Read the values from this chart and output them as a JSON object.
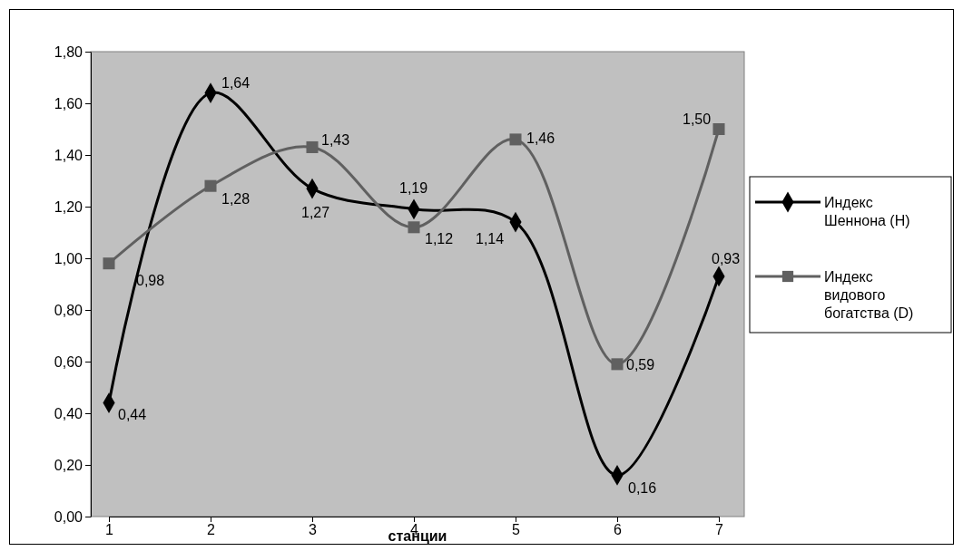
{
  "chart_data": {
    "type": "line",
    "xlabel": "станции",
    "categories": [
      "1",
      "2",
      "3",
      "4",
      "5",
      "6",
      "7"
    ],
    "series": [
      {
        "name": "Индекс Шеннона (H)",
        "color": "#000000",
        "marker": "diamond",
        "values": [
          0.44,
          1.64,
          1.27,
          1.19,
          1.14,
          0.16,
          0.93
        ],
        "value_labels": [
          "0,44",
          "1,64",
          "1,27",
          "1,19",
          "1,14",
          "0,16",
          "0,93"
        ]
      },
      {
        "name": "Индекс видового богатства (D)",
        "color": "#606060",
        "marker": "square",
        "values": [
          0.98,
          1.28,
          1.43,
          1.12,
          1.46,
          0.59,
          1.5
        ],
        "value_labels": [
          "0,98",
          "1,28",
          "1,43",
          "1,12",
          "1,46",
          "0,59",
          "1,50"
        ]
      }
    ],
    "ylim": [
      0,
      1.8
    ],
    "yticks": [
      {
        "value": 0,
        "label": "0,00"
      },
      {
        "value": 0.2,
        "label": "0,20"
      },
      {
        "value": 0.4,
        "label": "0,40"
      },
      {
        "value": 0.6,
        "label": "0,60"
      },
      {
        "value": 0.8,
        "label": "0,80"
      },
      {
        "value": 1,
        "label": "1,00"
      },
      {
        "value": 1.2,
        "label": "1,20"
      },
      {
        "value": 1.4,
        "label": "1,40"
      },
      {
        "value": 1.6,
        "label": "1,60"
      },
      {
        "value": 1.8,
        "label": "1,80"
      }
    ],
    "grid": false,
    "legend": "right",
    "line_style": "solid"
  }
}
